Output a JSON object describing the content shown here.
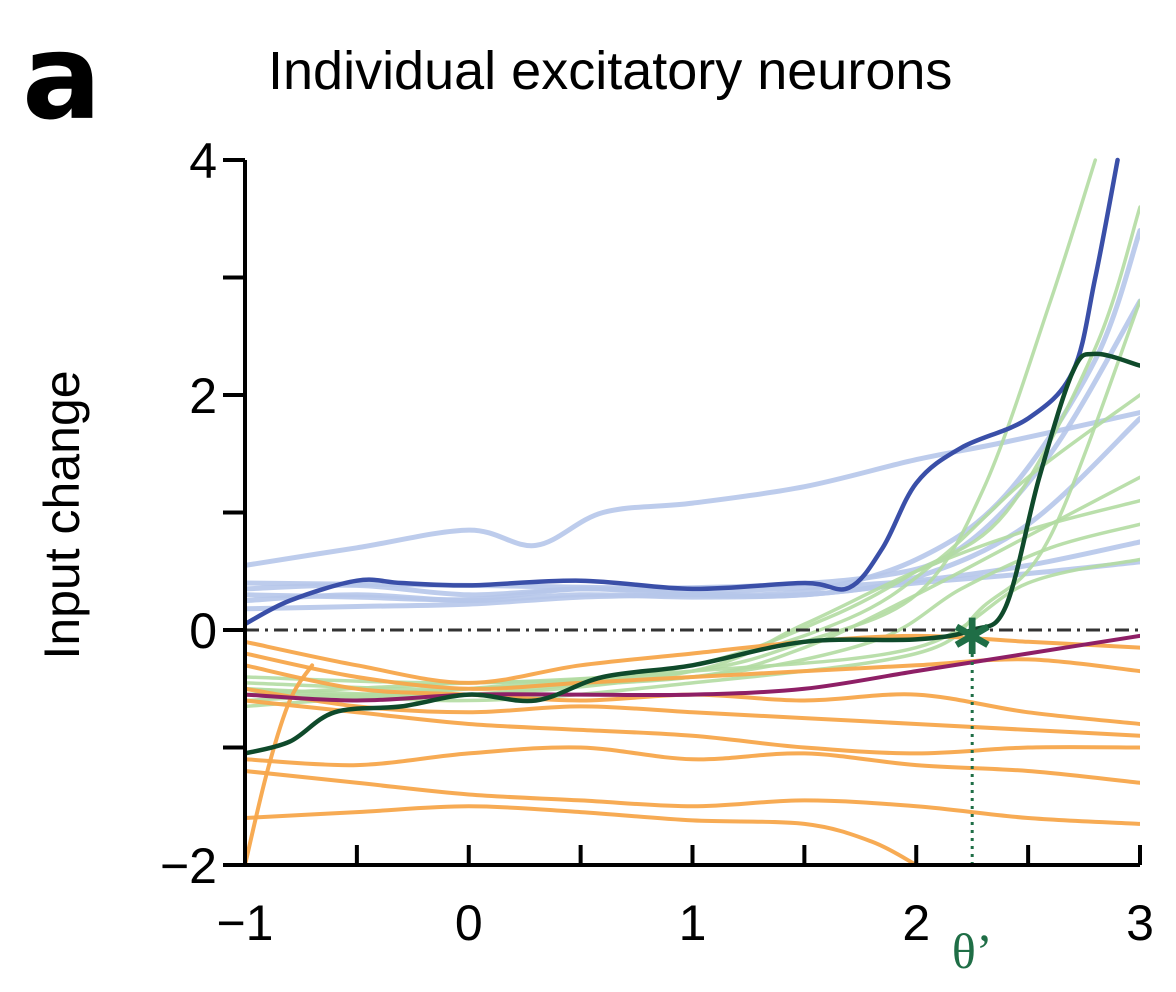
{
  "panel_label": "a",
  "chart_data": {
    "type": "line",
    "title": "Individual excitatory neurons",
    "xlabel": "",
    "ylabel": "Input change",
    "xlim": [
      -1,
      3
    ],
    "ylim": [
      -2,
      4
    ],
    "x_ticks": [
      -1,
      0,
      1,
      2,
      3
    ],
    "x_tick_labels": [
      "−1",
      "0",
      "1",
      "2",
      "3"
    ],
    "y_ticks": [
      -2,
      0,
      2,
      4
    ],
    "y_tick_labels": [
      "−2",
      "0",
      "2",
      "4"
    ],
    "reference_line_y": 0,
    "threshold": {
      "label": "θ’",
      "x": 2.25,
      "y": 0.0,
      "color": "#1f6e46"
    },
    "colors": {
      "light_blue": "#b6c7ea",
      "dark_blue": "#3a4fa8",
      "light_green": "#b3dba2",
      "dark_green": "#0f4a2b",
      "orange": "#f7a74b",
      "purple": "#8e1f66",
      "axis": "#000000",
      "dashed": "#333333"
    },
    "series": [
      {
        "group": "light_blue",
        "x": [
          -1,
          -0.5,
          0,
          0.3,
          0.6,
          1,
          1.5,
          2,
          2.4,
          3
        ],
        "y": [
          0.55,
          0.7,
          0.85,
          0.72,
          1.0,
          1.08,
          1.22,
          1.45,
          1.6,
          1.85
        ]
      },
      {
        "group": "light_blue",
        "x": [
          -1,
          -0.5,
          0,
          0.5,
          1,
          1.5,
          2,
          2.5,
          3
        ],
        "y": [
          0.35,
          0.38,
          0.3,
          0.35,
          0.33,
          0.36,
          0.42,
          0.55,
          0.75
        ]
      },
      {
        "group": "light_blue",
        "x": [
          -1,
          -0.5,
          0,
          0.5,
          1,
          1.5,
          2,
          2.5,
          3
        ],
        "y": [
          0.25,
          0.3,
          0.25,
          0.3,
          0.28,
          0.3,
          0.4,
          0.48,
          0.58
        ]
      },
      {
        "group": "light_blue",
        "x": [
          -1,
          -0.5,
          0,
          0.5,
          1,
          1.5,
          2,
          2.4,
          2.8,
          3
        ],
        "y": [
          0.18,
          0.2,
          0.22,
          0.28,
          0.3,
          0.33,
          0.6,
          1.15,
          2.3,
          3.4
        ]
      },
      {
        "group": "light_blue",
        "x": [
          -1,
          -0.5,
          0,
          0.5,
          1,
          1.5,
          2,
          2.5,
          3
        ],
        "y": [
          0.3,
          0.28,
          0.26,
          0.35,
          0.3,
          0.3,
          0.45,
          0.9,
          1.8
        ]
      },
      {
        "group": "light_blue",
        "x": [
          -1,
          0,
          1,
          1.8,
          2.2,
          2.6,
          3
        ],
        "y": [
          0.4,
          0.38,
          0.36,
          0.45,
          0.7,
          1.5,
          2.8
        ]
      },
      {
        "group": "light_green",
        "x": [
          -1,
          0,
          1,
          1.5,
          2,
          2.3,
          2.6,
          2.8
        ],
        "y": [
          -0.45,
          -0.5,
          -0.35,
          -0.1,
          0.3,
          1.2,
          2.8,
          4.0
        ]
      },
      {
        "group": "light_green",
        "x": [
          -1,
          0,
          1,
          1.6,
          2,
          2.4,
          2.8,
          3
        ],
        "y": [
          -0.55,
          -0.55,
          -0.3,
          0.1,
          0.5,
          1.0,
          2.4,
          3.6
        ]
      },
      {
        "group": "light_green",
        "x": [
          -1,
          0,
          1,
          1.5,
          2,
          2.5,
          3
        ],
        "y": [
          -0.6,
          -0.5,
          -0.4,
          -0.15,
          0.3,
          0.8,
          1.3
        ]
      },
      {
        "group": "light_green",
        "x": [
          -1,
          0,
          1,
          1.5,
          2,
          2.5,
          3
        ],
        "y": [
          -0.5,
          -0.55,
          -0.35,
          0.05,
          0.5,
          0.85,
          1.1
        ]
      },
      {
        "group": "light_green",
        "x": [
          -1,
          0,
          1,
          1.7,
          2.1,
          2.5,
          3
        ],
        "y": [
          -0.65,
          -0.5,
          -0.3,
          0.1,
          0.6,
          1.3,
          2.0
        ]
      },
      {
        "group": "light_green",
        "x": [
          -1,
          0,
          1,
          1.8,
          2.2,
          2.6,
          3
        ],
        "y": [
          -0.55,
          -0.45,
          -0.4,
          -0.1,
          0.35,
          0.7,
          0.9
        ]
      },
      {
        "group": "light_green",
        "x": [
          -1,
          0,
          1,
          2,
          2.3,
          2.6,
          3
        ],
        "y": [
          -0.5,
          -0.6,
          -0.45,
          -0.2,
          0.2,
          0.8,
          2.8
        ]
      },
      {
        "group": "light_green",
        "x": [
          -1,
          0,
          1,
          2,
          2.5,
          3
        ],
        "y": [
          -0.4,
          -0.45,
          -0.35,
          -0.15,
          0.4,
          0.6
        ]
      },
      {
        "group": "orange",
        "x": [
          -1,
          -0.5,
          0,
          0.5,
          1,
          1.5,
          2,
          2.5,
          3
        ],
        "y": [
          -0.1,
          -0.3,
          -0.45,
          -0.3,
          -0.2,
          -0.1,
          -0.05,
          -0.1,
          -0.15
        ]
      },
      {
        "group": "orange",
        "x": [
          -1,
          -0.5,
          0,
          0.5,
          1,
          1.5,
          2,
          2.5,
          3
        ],
        "y": [
          -0.2,
          -0.4,
          -0.5,
          -0.45,
          -0.4,
          -0.35,
          -0.3,
          -0.25,
          -0.35
        ]
      },
      {
        "group": "orange",
        "x": [
          -1,
          -0.5,
          0,
          0.5,
          1,
          1.5,
          2,
          2.5,
          3
        ],
        "y": [
          -0.3,
          -0.5,
          -0.55,
          -0.6,
          -0.55,
          -0.6,
          -0.55,
          -0.7,
          -0.8
        ]
      },
      {
        "group": "orange",
        "x": [
          -1,
          -0.5,
          0,
          0.5,
          1,
          1.5,
          2,
          2.5,
          3
        ],
        "y": [
          -0.5,
          -0.65,
          -0.7,
          -0.65,
          -0.7,
          -0.75,
          -0.8,
          -0.85,
          -0.9
        ]
      },
      {
        "group": "orange",
        "x": [
          -1,
          -0.5,
          0,
          0.5,
          1,
          1.5,
          2,
          2.5,
          3
        ],
        "y": [
          -0.6,
          -0.7,
          -0.8,
          -0.85,
          -0.9,
          -1.0,
          -1.05,
          -1.0,
          -1.0
        ]
      },
      {
        "group": "orange",
        "x": [
          -1,
          -0.5,
          0,
          0.5,
          1,
          1.5,
          2,
          2.5,
          3
        ],
        "y": [
          -1.1,
          -1.15,
          -1.05,
          -1.0,
          -1.1,
          -1.05,
          -1.15,
          -1.2,
          -1.3
        ]
      },
      {
        "group": "orange",
        "x": [
          -1,
          -0.5,
          0,
          0.5,
          1,
          1.5,
          2,
          2.5,
          3
        ],
        "y": [
          -1.2,
          -1.3,
          -1.4,
          -1.45,
          -1.5,
          -1.45,
          -1.5,
          -1.6,
          -1.65
        ]
      },
      {
        "group": "orange",
        "x": [
          -1,
          -0.5,
          0,
          0.5,
          1,
          1.5,
          1.8,
          2.0
        ],
        "y": [
          -1.6,
          -1.55,
          -1.5,
          -1.55,
          -1.62,
          -1.65,
          -1.8,
          -2.0
        ]
      },
      {
        "group": "orange",
        "x": [
          -1,
          -0.9,
          -0.8,
          -0.7
        ],
        "y": [
          -2.0,
          -1.2,
          -0.6,
          -0.3
        ]
      },
      {
        "group": "dark_blue",
        "x": [
          -1,
          -0.8,
          -0.5,
          -0.3,
          0,
          0.5,
          1,
          1.5,
          1.7,
          1.85,
          2.0,
          2.2,
          2.5,
          2.7,
          2.8,
          2.9
        ],
        "y": [
          0.05,
          0.25,
          0.42,
          0.4,
          0.38,
          0.42,
          0.35,
          0.4,
          0.36,
          0.7,
          1.25,
          1.55,
          1.8,
          2.2,
          3.0,
          4.0
        ]
      },
      {
        "group": "dark_green",
        "x": [
          -1,
          -0.8,
          -0.6,
          -0.3,
          0,
          0.3,
          0.6,
          1,
          1.5,
          2.0,
          2.25,
          2.4,
          2.55,
          2.7,
          2.8,
          3.0
        ],
        "y": [
          -1.05,
          -0.95,
          -0.7,
          -0.65,
          -0.55,
          -0.6,
          -0.4,
          -0.3,
          -0.1,
          -0.08,
          0.0,
          0.2,
          1.3,
          2.2,
          2.35,
          2.25
        ]
      },
      {
        "group": "purple",
        "x": [
          -1,
          -0.5,
          0,
          0.5,
          1,
          1.5,
          2,
          2.5,
          3
        ],
        "y": [
          -0.55,
          -0.6,
          -0.55,
          -0.55,
          -0.55,
          -0.5,
          -0.35,
          -0.2,
          -0.05
        ]
      }
    ]
  }
}
